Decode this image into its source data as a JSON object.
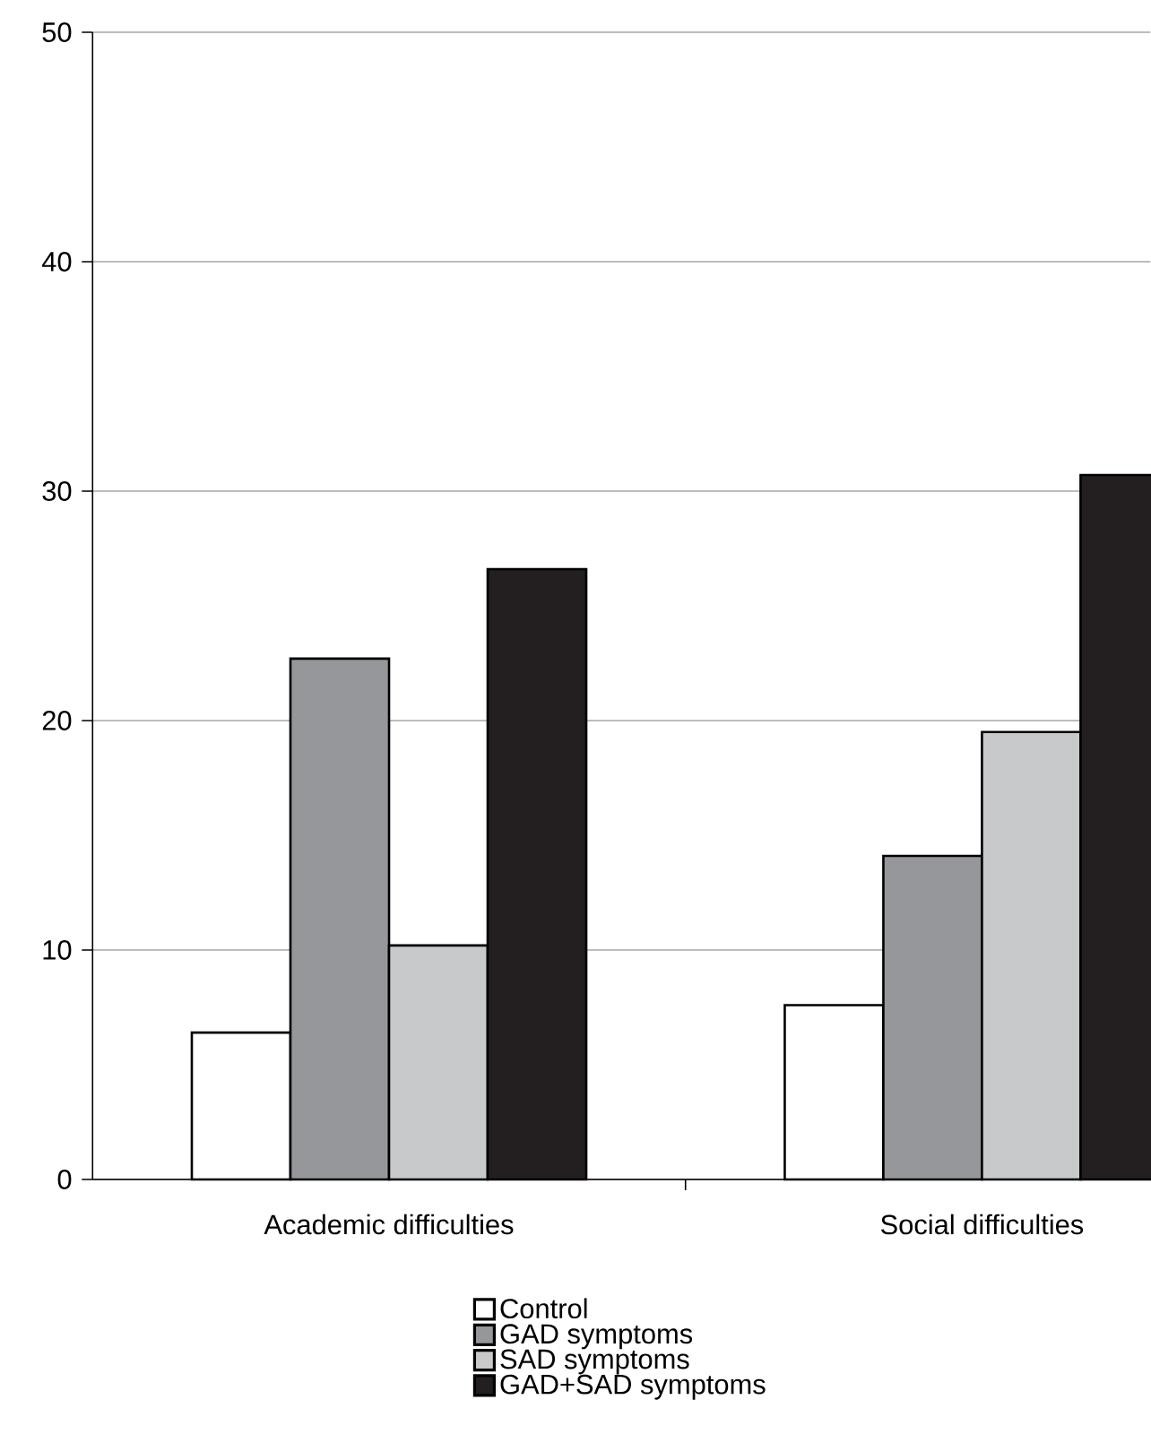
{
  "chart_data": {
    "type": "bar",
    "categories": [
      "Academic difficulties",
      "Social difficulties"
    ],
    "series": [
      {
        "name": "Control",
        "color": "#ffffff",
        "values": [
          6.4,
          7.6
        ]
      },
      {
        "name": "GAD symptoms",
        "color": "#96979b",
        "values": [
          22.7,
          14.1
        ]
      },
      {
        "name": "SAD symptoms",
        "color": "#c8c9cb",
        "values": [
          10.2,
          19.5
        ]
      },
      {
        "name": "GAD+SAD symptoms",
        "color": "#231f20",
        "values": [
          26.6,
          30.7
        ]
      }
    ],
    "ylim": [
      0,
      50
    ],
    "yticks": [
      0,
      10,
      20,
      30,
      40,
      50
    ],
    "grid": "y",
    "legend": "bottom"
  }
}
